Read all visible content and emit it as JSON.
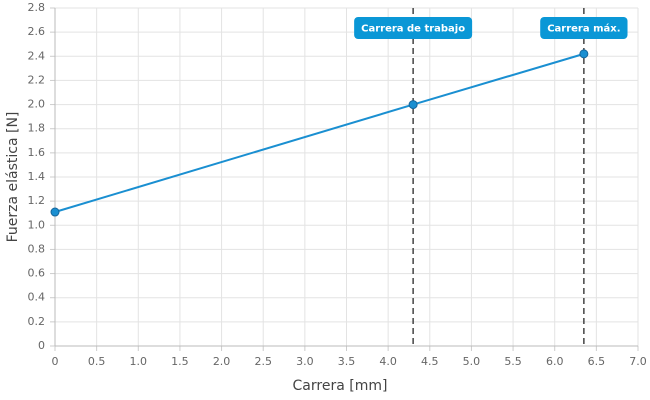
{
  "chart_data": {
    "type": "line",
    "x": [
      0,
      4.3,
      6.35
    ],
    "series": [
      {
        "color": "#1a8fd1",
        "values": [
          1.11,
          2.0,
          2.42
        ]
      }
    ],
    "x_label": "Carrera [mm]",
    "y_label": "Fuerza elástica [N]",
    "xlim": [
      0,
      7
    ],
    "ylim": [
      0,
      2.8
    ],
    "xticks": [
      0,
      0.5,
      {
        "value": 1,
        "label": "1.0"
      },
      1.5,
      {
        "value": 2,
        "label": "2.0"
      },
      2.5,
      {
        "value": 3,
        "label": "3.0"
      },
      3.5,
      {
        "value": 4,
        "label": "4.0"
      },
      4.5,
      {
        "value": 5,
        "label": "5.0"
      },
      5.5,
      {
        "value": 6,
        "label": "6.0"
      },
      6.5,
      {
        "value": 7,
        "label": "7.0"
      }
    ],
    "yticks": [
      0,
      0.2,
      0.4,
      0.6,
      0.8,
      {
        "value": 1,
        "label": "1.0"
      },
      1.2,
      1.4,
      1.6,
      1.8,
      {
        "value": 2,
        "label": "2.0"
      },
      2.2,
      2.4,
      2.6,
      2.8
    ],
    "grid": true,
    "annotations": [
      {
        "x": 4.3,
        "label": "Carrera de trabajo",
        "color": "#0a97d6"
      },
      {
        "x": 6.35,
        "label": "Carrera máx.",
        "color": "#0a97d6"
      }
    ]
  }
}
